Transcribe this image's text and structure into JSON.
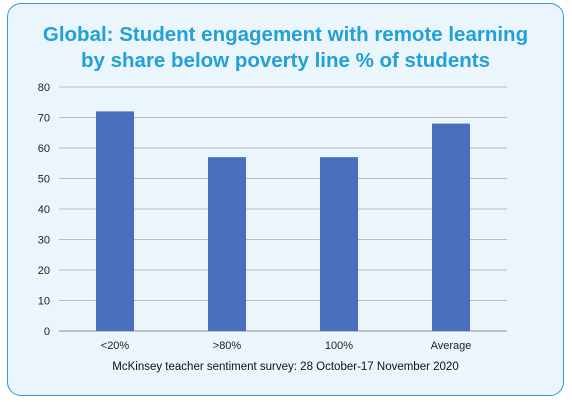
{
  "title_line1": "Global: Student engagement with remote learning",
  "title_line2": "by share below poverty line % of students",
  "source": "McKinsey teacher sentiment survey: 28 October-17 November 2020",
  "colors": {
    "title": "#22a0d8",
    "bar": "#4a6fbe",
    "frame_border": "#2c9bd6",
    "frame_bg": "#eaf5fc",
    "grid": "#b9bcc0"
  },
  "chart_data": {
    "type": "bar",
    "categories": [
      "<20%",
      ">80%",
      "100%",
      "Average"
    ],
    "values": [
      72,
      57,
      57,
      68
    ],
    "ylim": [
      0,
      80
    ],
    "yticks": [
      0,
      10,
      20,
      30,
      40,
      50,
      60,
      70,
      80
    ],
    "grid": true,
    "legend": "none"
  }
}
